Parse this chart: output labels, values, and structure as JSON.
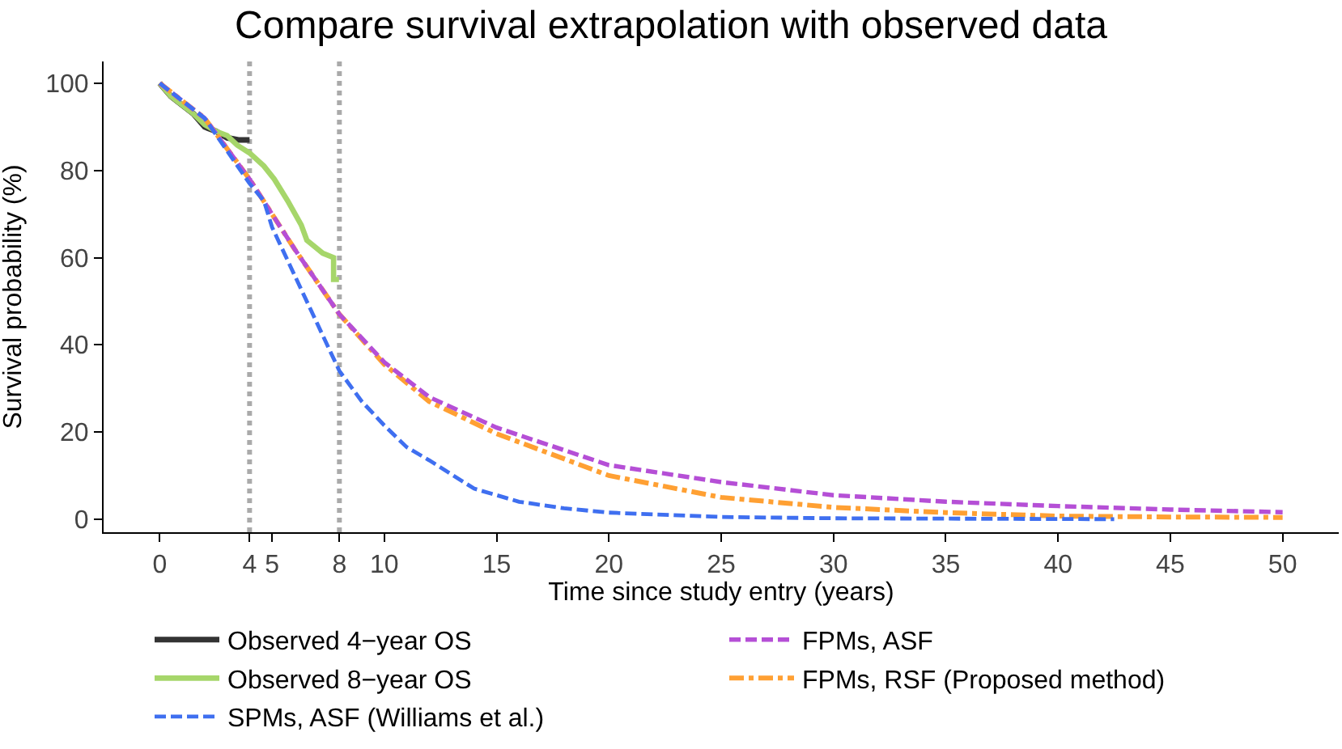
{
  "chart_data": {
    "type": "line",
    "title": "Compare survival extrapolation with observed data",
    "xlabel": "Time since study entry (years)",
    "ylabel": "Survival probability (%)",
    "xlim": [
      -2.5,
      52.5
    ],
    "ylim": [
      -3,
      105
    ],
    "xticks": [
      0,
      4,
      5,
      8,
      10,
      15,
      20,
      25,
      30,
      35,
      40,
      45,
      50
    ],
    "yticks": [
      0,
      20,
      40,
      60,
      80,
      100
    ],
    "grid": false,
    "legend": "bottom",
    "ref_lines": [
      {
        "axis": "x",
        "value": 4,
        "color": "#aaaaaa",
        "line_style": "dotted"
      },
      {
        "axis": "x",
        "value": 8,
        "color": "#aaaaaa",
        "line_style": "dotted"
      }
    ],
    "series": [
      {
        "name": "Observed 4−year OS",
        "color": "#333333",
        "line_style": "solid",
        "x": [
          0,
          0.5,
          1,
          1.5,
          2,
          2.5,
          3,
          3.5,
          4
        ],
        "values": [
          100,
          97,
          95,
          93,
          90,
          89,
          87.5,
          87,
          87
        ]
      },
      {
        "name": "Observed 8−year OS",
        "color": "#a6d66a",
        "line_style": "solid",
        "x": [
          0,
          0.5,
          1,
          1.5,
          2,
          2.5,
          3,
          3.45,
          4,
          4.64,
          5.1,
          5.7,
          6.3,
          6.55,
          7.26,
          7.74,
          7.74,
          7.98
        ],
        "values": [
          100,
          97,
          95,
          93,
          90.5,
          89,
          88,
          85.8,
          84,
          81,
          78,
          73,
          67.5,
          64,
          61,
          60,
          55,
          55
        ]
      },
      {
        "name": "SPMs, ASF (Williams et al.)",
        "color": "#3f6ff0",
        "line_style": "dashed",
        "x": [
          0,
          2,
          4,
          4.64,
          5,
          6,
          7,
          8,
          9,
          10,
          11,
          12,
          14,
          16,
          18,
          20,
          25,
          30,
          42.5
        ],
        "values": [
          100,
          92,
          77,
          73,
          67,
          56,
          45,
          34,
          27,
          21.5,
          16.5,
          13.5,
          7,
          4,
          2.5,
          1.5,
          0.5,
          0.2,
          0
        ]
      },
      {
        "name": "FPMs, ASF",
        "color": "#b54fd6",
        "line_style": "dashed",
        "x": [
          0,
          2,
          4,
          6,
          8,
          10,
          12,
          15,
          20,
          25,
          30,
          35,
          40,
          45,
          50
        ],
        "values": [
          100,
          92,
          78,
          62,
          47,
          36,
          28,
          21,
          12.4,
          8.5,
          5.5,
          4,
          3,
          2.2,
          1.6
        ]
      },
      {
        "name": "FPMs, RSF (Proposed method)",
        "color": "#ffa033",
        "line_style": "dashdot",
        "x": [
          0,
          2,
          4,
          6,
          8,
          10,
          12,
          15,
          20,
          25,
          30,
          35,
          40,
          45,
          50
        ],
        "values": [
          100,
          92,
          78,
          62,
          47,
          35.5,
          27,
          19.6,
          10,
          5,
          2.7,
          1.5,
          0.7,
          0.5,
          0.4
        ]
      }
    ]
  }
}
